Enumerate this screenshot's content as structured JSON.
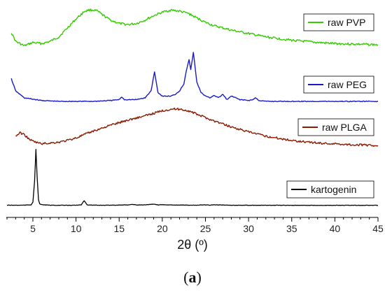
{
  "chart_data": {
    "type": "line",
    "xlabel": "2θ (º)",
    "ylabel": "",
    "xlim": [
      2,
      45
    ],
    "x_ticks": [
      5,
      10,
      15,
      20,
      25,
      30,
      35,
      40,
      45
    ],
    "grid": false,
    "series": [
      {
        "name": "raw PVP",
        "color": "#33cc00",
        "x": [
          2.5,
          3,
          4,
          5,
          6,
          7,
          8,
          9,
          10,
          11,
          11.5,
          12,
          12.5,
          13,
          14,
          15,
          16,
          17,
          18,
          19,
          20,
          21,
          22,
          23,
          24,
          25,
          26,
          28,
          30,
          32,
          35,
          38,
          40,
          42,
          45
        ],
        "y": [
          0.9,
          0.86,
          0.84,
          0.855,
          0.85,
          0.86,
          0.88,
          0.92,
          0.96,
          0.995,
          1.0,
          1.0,
          0.995,
          0.98,
          0.955,
          0.94,
          0.935,
          0.94,
          0.955,
          0.975,
          0.99,
          1.0,
          0.995,
          0.985,
          0.965,
          0.945,
          0.93,
          0.91,
          0.895,
          0.88,
          0.865,
          0.855,
          0.85,
          0.848,
          0.845
        ]
      },
      {
        "name": "raw PEG",
        "color": "#1a1acc",
        "x": [
          2.5,
          3,
          4,
          6,
          8,
          10,
          12,
          14,
          15,
          15.3,
          15.6,
          16,
          17,
          18,
          18.7,
          19.1,
          19.5,
          20,
          21,
          21.5,
          22,
          22.5,
          22.8,
          23.1,
          23.3,
          23.6,
          24,
          24.5,
          25,
          25.5,
          26,
          26.5,
          27,
          27.5,
          28,
          29,
          30,
          30.5,
          30.8,
          31.2,
          32,
          34,
          36,
          38,
          40,
          42,
          45
        ],
        "y": [
          0.55,
          0.48,
          0.44,
          0.425,
          0.42,
          0.42,
          0.42,
          0.425,
          0.43,
          0.445,
          0.43,
          0.43,
          0.43,
          0.44,
          0.48,
          0.59,
          0.47,
          0.45,
          0.45,
          0.46,
          0.48,
          0.52,
          0.6,
          0.66,
          0.6,
          0.7,
          0.53,
          0.47,
          0.45,
          0.44,
          0.455,
          0.44,
          0.46,
          0.43,
          0.45,
          0.43,
          0.425,
          0.43,
          0.44,
          0.425,
          0.42,
          0.42,
          0.42,
          0.42,
          0.42,
          0.42,
          0.42
        ]
      },
      {
        "name": "raw PLGA",
        "color": "#8b1a00",
        "x": [
          3,
          3.5,
          4,
          4.5,
          5,
          6,
          7,
          8,
          9,
          10,
          12,
          14,
          16,
          18,
          19,
          20,
          21,
          22,
          23,
          24,
          25,
          26,
          28,
          30,
          32,
          35,
          38,
          40,
          42,
          45
        ],
        "y": [
          0.075,
          0.095,
          0.085,
          0.06,
          0.045,
          0.03,
          0.035,
          0.04,
          0.05,
          0.065,
          0.105,
          0.14,
          0.17,
          0.195,
          0.21,
          0.225,
          0.235,
          0.235,
          0.225,
          0.205,
          0.185,
          0.165,
          0.13,
          0.1,
          0.075,
          0.05,
          0.035,
          0.03,
          0.025,
          0.02
        ]
      },
      {
        "name": "kartogenin",
        "color": "#000000",
        "x": [
          2,
          3,
          4,
          4.8,
          5.0,
          5.2,
          5.35,
          5.5,
          5.65,
          5.8,
          6.2,
          7,
          8,
          9,
          10,
          10.6,
          10.95,
          11.3,
          12,
          14,
          16,
          16.5,
          17,
          18,
          19,
          19.5,
          20,
          22,
          24,
          25,
          25.5,
          26,
          28,
          30,
          32,
          35,
          38,
          40,
          42,
          45
        ],
        "y": [
          0.005,
          0.004,
          0.005,
          0.01,
          0.05,
          0.35,
          0.8,
          0.4,
          0.08,
          0.02,
          0.01,
          0.004,
          0.003,
          0.003,
          0.004,
          0.008,
          0.07,
          0.01,
          0.004,
          0.005,
          0.009,
          0.016,
          0.008,
          0.01,
          0.018,
          0.009,
          0.012,
          0.006,
          0.005,
          0.01,
          0.004,
          0.01,
          0.004,
          0.004,
          0.003,
          0.003,
          0.003,
          0.003,
          0.003,
          0.003
        ]
      }
    ]
  },
  "caption": {
    "open": "(",
    "letter": "a",
    "close": ")"
  }
}
